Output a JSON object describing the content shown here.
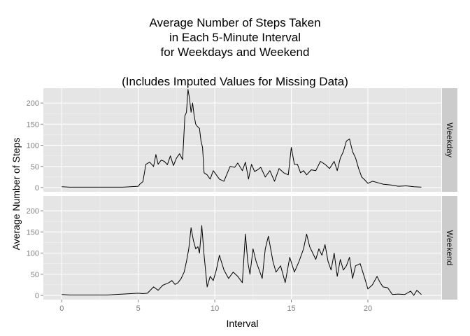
{
  "chart_data": {
    "type": "line",
    "title_lines": [
      "Average Number of Steps Taken",
      "in Each 5-Minute Interval",
      "for Weekdays and Weekend",
      "",
      "(Includes Imputed Values for Missing Data)"
    ],
    "xlabel": "Interval",
    "ylabel": "Average Number of Steps",
    "xlim": [
      -1.2,
      24.8
    ],
    "ylim": [
      -10,
      235
    ],
    "x_ticks": [
      0,
      5,
      10,
      15,
      20
    ],
    "y_ticks": [
      0,
      50,
      100,
      150,
      200
    ],
    "grid": true,
    "line_color": "#000000",
    "panel_background": "#e5e5e5",
    "strip_background": "#cccccc",
    "panels": [
      {
        "strip_label": "Weekday",
        "x": [
          0,
          0.5,
          1,
          1.5,
          2,
          2.5,
          3,
          3.5,
          4,
          4.5,
          5,
          5.1,
          5.3,
          5.5,
          5.75,
          6,
          6.15,
          6.3,
          6.5,
          6.7,
          6.9,
          7.1,
          7.3,
          7.5,
          7.7,
          7.9,
          8.05,
          8.15,
          8.25,
          8.35,
          8.45,
          8.55,
          8.65,
          8.75,
          8.85,
          9,
          9.1,
          9.2,
          9.3,
          9.5,
          9.7,
          9.9,
          10.1,
          10.3,
          10.6,
          11,
          11.3,
          11.5,
          11.8,
          12,
          12.2,
          12.4,
          12.6,
          12.8,
          13,
          13.3,
          13.6,
          13.9,
          14.2,
          14.5,
          14.8,
          15,
          15.2,
          15.4,
          15.6,
          15.8,
          16,
          16.3,
          16.6,
          16.9,
          17.2,
          17.5,
          17.8,
          18,
          18.2,
          18.4,
          18.6,
          18.8,
          19,
          19.2,
          19.4,
          19.6,
          19.8,
          20,
          20.3,
          20.6,
          21,
          21.5,
          22,
          22.5,
          23,
          23.5
        ],
        "y": [
          2,
          1,
          1,
          1,
          1,
          1,
          1,
          1,
          1,
          2,
          3,
          8,
          14,
          55,
          60,
          50,
          78,
          55,
          65,
          62,
          54,
          75,
          52,
          70,
          80,
          66,
          170,
          178,
          232,
          210,
          178,
          200,
          170,
          150,
          145,
          140,
          110,
          95,
          35,
          30,
          20,
          40,
          30,
          20,
          15,
          50,
          48,
          58,
          40,
          60,
          20,
          55,
          38,
          42,
          48,
          25,
          40,
          15,
          45,
          35,
          30,
          95,
          55,
          55,
          35,
          40,
          30,
          42,
          40,
          62,
          55,
          45,
          62,
          40,
          70,
          85,
          110,
          115,
          85,
          70,
          45,
          25,
          18,
          10,
          15,
          12,
          8,
          6,
          3,
          4,
          2,
          1
        ]
      },
      {
        "strip_label": "Weekend",
        "x": [
          0,
          0.5,
          1,
          1.5,
          2,
          2.5,
          3,
          3.5,
          4,
          4.5,
          5,
          5.3,
          5.6,
          6,
          6.3,
          6.6,
          7,
          7.2,
          7.4,
          7.6,
          7.8,
          8,
          8.15,
          8.3,
          8.45,
          8.6,
          8.75,
          8.9,
          9,
          9.15,
          9.3,
          9.5,
          9.7,
          9.9,
          10.1,
          10.3,
          10.6,
          10.9,
          11.2,
          11.5,
          11.8,
          12,
          12.15,
          12.3,
          12.5,
          12.7,
          12.9,
          13.1,
          13.3,
          13.5,
          13.8,
          14,
          14.3,
          14.6,
          14.9,
          15.2,
          15.5,
          15.8,
          16,
          16.2,
          16.4,
          16.6,
          16.8,
          17,
          17.2,
          17.4,
          17.6,
          17.8,
          18,
          18.2,
          18.4,
          18.6,
          18.8,
          19,
          19.2,
          19.5,
          19.8,
          20,
          20.3,
          20.6,
          20.8,
          21,
          21.3,
          21.6,
          22,
          22.4,
          22.8,
          23,
          23.2,
          23.5
        ],
        "y": [
          2,
          1,
          1,
          1,
          1,
          1,
          1,
          2,
          3,
          4,
          5,
          4,
          5,
          20,
          12,
          24,
          30,
          35,
          26,
          30,
          40,
          55,
          80,
          110,
          160,
          130,
          110,
          115,
          100,
          165,
          95,
          20,
          45,
          35,
          60,
          95,
          60,
          40,
          55,
          45,
          30,
          145,
          80,
          50,
          110,
          80,
          60,
          40,
          110,
          140,
          80,
          55,
          70,
          30,
          90,
          55,
          80,
          110,
          145,
          115,
          100,
          85,
          110,
          95,
          120,
          80,
          60,
          100,
          45,
          85,
          60,
          70,
          90,
          40,
          70,
          75,
          40,
          15,
          25,
          45,
          30,
          20,
          18,
          2,
          3,
          2,
          10,
          0,
          12,
          2
        ]
      }
    ]
  }
}
